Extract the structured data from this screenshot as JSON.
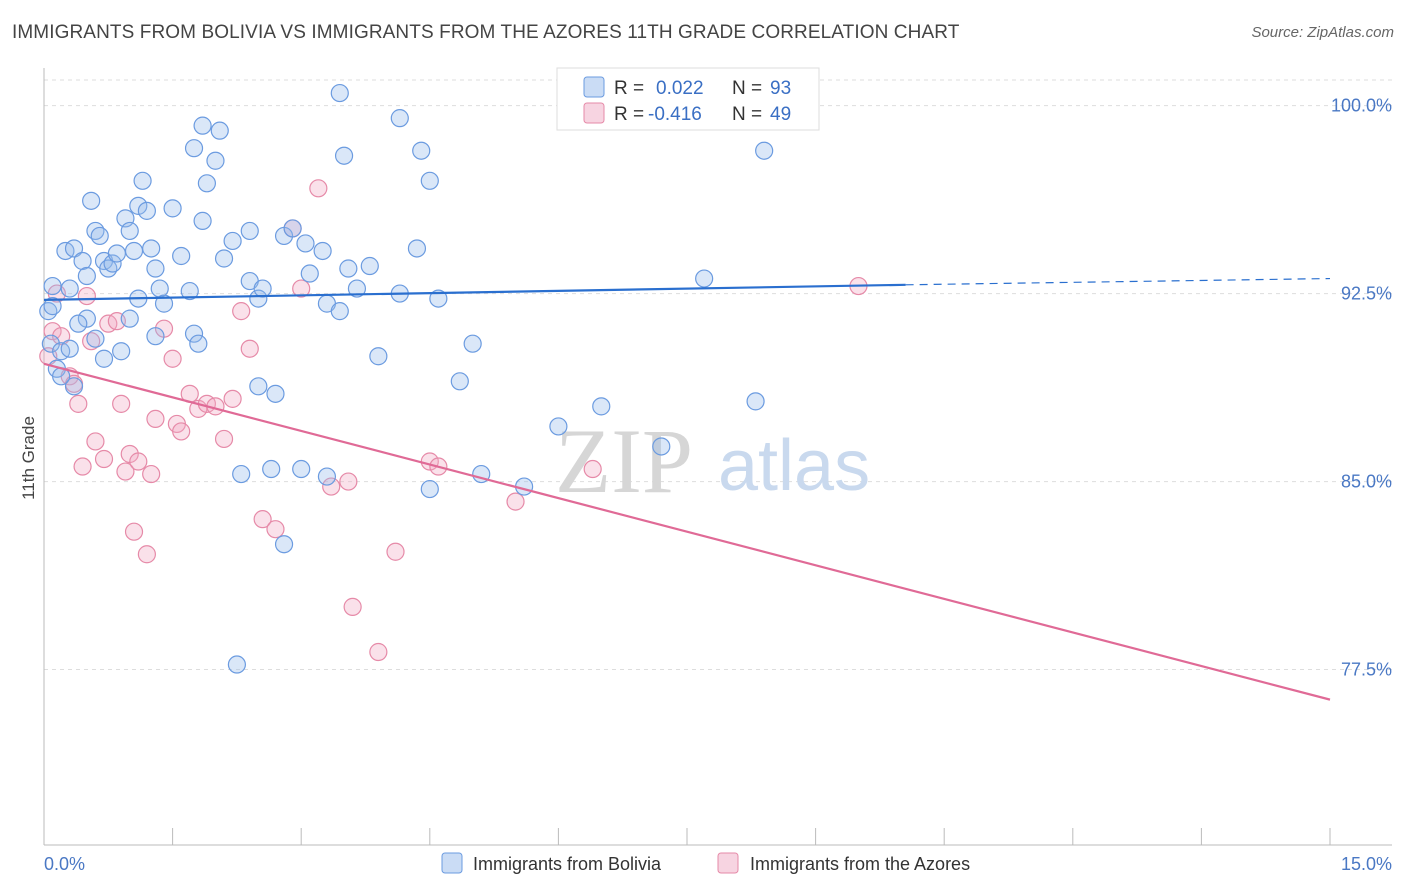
{
  "title": "IMMIGRANTS FROM BOLIVIA VS IMMIGRANTS FROM THE AZORES 11TH GRADE CORRELATION CHART",
  "source": "Source: ZipAtlas.com",
  "watermark": {
    "zip": "ZIP",
    "atlas": "atlas"
  },
  "colors": {
    "bolivia": "#6b9be0",
    "bolivia_fill": "rgba(150,185,235,0.35)",
    "bolivia_line": "#2a6fcf",
    "azores": "#e68aa8",
    "azores_fill": "rgba(240,170,195,0.35)",
    "azores_line": "#e06a96",
    "axis_label": "#4a78c4"
  },
  "legend": {
    "r_label": "R =",
    "n_label": "N =",
    "bolivia": {
      "r": "0.022",
      "n": "93"
    },
    "azores": {
      "r": "-0.416",
      "n": "49"
    }
  },
  "chart_data": {
    "type": "scatter",
    "title": "IMMIGRANTS FROM BOLIVIA VS IMMIGRANTS FROM THE AZORES 11TH GRADE CORRELATION CHART",
    "xlabel": "",
    "ylabel": "11th Grade",
    "xlim": [
      0,
      15
    ],
    "ylim": [
      70.5,
      101.5
    ],
    "x_tick_labels": [
      {
        "value": 0,
        "label": "0.0%"
      },
      {
        "value": 15,
        "label": "15.0%"
      }
    ],
    "y_ticks": [
      {
        "value": 100,
        "label": "100.0%"
      },
      {
        "value": 92.5,
        "label": "92.5%"
      },
      {
        "value": 85,
        "label": "85.0%"
      },
      {
        "value": 77.5,
        "label": "77.5%"
      }
    ],
    "grid": true,
    "legend_position": "top-center",
    "series": [
      {
        "name": "Immigrants from Bolivia",
        "color": "#6b9be0",
        "trend": {
          "x": [
            0,
            10.05
          ],
          "y": [
            92.25,
            92.85
          ],
          "dashed_to": [
            15,
            93.1
          ]
        },
        "points": [
          [
            0.1,
            92.8
          ],
          [
            0.05,
            91.8
          ],
          [
            0.08,
            90.5
          ],
          [
            0.15,
            89.5
          ],
          [
            0.2,
            90.2
          ],
          [
            0.3,
            92.7
          ],
          [
            0.25,
            94.2
          ],
          [
            0.35,
            94.3
          ],
          [
            0.45,
            93.8
          ],
          [
            0.5,
            93.2
          ],
          [
            0.55,
            96.2
          ],
          [
            0.6,
            95.0
          ],
          [
            0.65,
            94.8
          ],
          [
            0.7,
            93.8
          ],
          [
            0.75,
            93.5
          ],
          [
            0.8,
            93.7
          ],
          [
            0.85,
            94.1
          ],
          [
            0.95,
            95.5
          ],
          [
            1.0,
            95.0
          ],
          [
            1.05,
            94.2
          ],
          [
            1.1,
            96.0
          ],
          [
            1.2,
            95.8
          ],
          [
            1.25,
            94.3
          ],
          [
            1.3,
            93.5
          ],
          [
            1.35,
            92.7
          ],
          [
            1.4,
            92.1
          ],
          [
            1.5,
            95.9
          ],
          [
            1.6,
            94.0
          ],
          [
            1.7,
            92.6
          ],
          [
            1.75,
            90.9
          ],
          [
            1.8,
            90.5
          ],
          [
            1.3,
            90.8
          ],
          [
            1.1,
            92.3
          ],
          [
            1.0,
            91.5
          ],
          [
            0.9,
            90.2
          ],
          [
            0.7,
            89.9
          ],
          [
            0.6,
            90.7
          ],
          [
            0.5,
            91.5
          ],
          [
            0.4,
            91.3
          ],
          [
            0.3,
            90.3
          ],
          [
            0.35,
            88.8
          ],
          [
            0.2,
            89.2
          ],
          [
            0.1,
            92.0
          ],
          [
            1.15,
            97.0
          ],
          [
            1.75,
            98.3
          ],
          [
            1.9,
            96.9
          ],
          [
            2.0,
            97.8
          ],
          [
            2.05,
            99.0
          ],
          [
            1.85,
            99.2
          ],
          [
            1.85,
            95.4
          ],
          [
            2.1,
            93.9
          ],
          [
            2.2,
            94.6
          ],
          [
            2.4,
            95.0
          ],
          [
            2.4,
            93.0
          ],
          [
            2.5,
            92.3
          ],
          [
            2.55,
            92.7
          ],
          [
            2.8,
            94.8
          ],
          [
            2.9,
            95.1
          ],
          [
            3.05,
            94.5
          ],
          [
            3.1,
            93.3
          ],
          [
            3.25,
            94.2
          ],
          [
            3.3,
            92.1
          ],
          [
            3.45,
            91.8
          ],
          [
            3.55,
            93.5
          ],
          [
            3.5,
            98.0
          ],
          [
            3.45,
            100.5
          ],
          [
            3.65,
            92.7
          ],
          [
            3.8,
            93.6
          ],
          [
            3.9,
            90.0
          ],
          [
            4.15,
            92.5
          ],
          [
            4.4,
            98.2
          ],
          [
            4.15,
            99.5
          ],
          [
            4.35,
            94.3
          ],
          [
            4.5,
            97.0
          ],
          [
            4.6,
            92.3
          ],
          [
            4.85,
            89.0
          ],
          [
            5.1,
            85.3
          ],
          [
            5.6,
            84.8
          ],
          [
            6.0,
            87.2
          ],
          [
            6.5,
            88.0
          ],
          [
            7.2,
            86.4
          ],
          [
            7.7,
            93.1
          ],
          [
            8.4,
            98.2
          ],
          [
            8.3,
            88.2
          ],
          [
            5.0,
            90.5
          ],
          [
            4.5,
            84.7
          ],
          [
            2.8,
            82.5
          ],
          [
            2.3,
            85.3
          ],
          [
            2.65,
            85.5
          ],
          [
            2.5,
            88.8
          ],
          [
            2.7,
            88.5
          ],
          [
            3.3,
            85.2
          ],
          [
            3.0,
            85.5
          ],
          [
            2.25,
            77.7
          ]
        ]
      },
      {
        "name": "Immigrants from the Azores",
        "color": "#e68aa8",
        "trend": {
          "x": [
            0,
            15
          ],
          "y": [
            89.7,
            76.3
          ]
        },
        "points": [
          [
            0.05,
            90.0
          ],
          [
            0.1,
            91.0
          ],
          [
            0.15,
            92.5
          ],
          [
            0.2,
            90.8
          ],
          [
            0.3,
            89.2
          ],
          [
            0.35,
            88.9
          ],
          [
            0.4,
            88.1
          ],
          [
            0.45,
            85.6
          ],
          [
            0.5,
            92.4
          ],
          [
            0.55,
            90.6
          ],
          [
            0.6,
            86.6
          ],
          [
            0.7,
            85.9
          ],
          [
            0.75,
            91.3
          ],
          [
            0.85,
            91.4
          ],
          [
            0.9,
            88.1
          ],
          [
            0.95,
            85.4
          ],
          [
            1.0,
            86.1
          ],
          [
            1.05,
            83.0
          ],
          [
            1.1,
            85.8
          ],
          [
            1.2,
            82.1
          ],
          [
            1.25,
            85.3
          ],
          [
            1.3,
            87.5
          ],
          [
            1.4,
            91.1
          ],
          [
            1.5,
            89.9
          ],
          [
            1.55,
            87.3
          ],
          [
            1.6,
            87.0
          ],
          [
            1.7,
            88.5
          ],
          [
            1.8,
            87.9
          ],
          [
            1.9,
            88.1
          ],
          [
            2.0,
            88.0
          ],
          [
            2.1,
            86.7
          ],
          [
            2.2,
            88.3
          ],
          [
            2.3,
            91.8
          ],
          [
            2.4,
            90.3
          ],
          [
            2.55,
            83.5
          ],
          [
            2.7,
            83.1
          ],
          [
            2.9,
            95.1
          ],
          [
            3.0,
            92.7
          ],
          [
            3.2,
            96.7
          ],
          [
            3.35,
            84.8
          ],
          [
            3.55,
            85.0
          ],
          [
            3.6,
            80.0
          ],
          [
            3.9,
            78.2
          ],
          [
            4.1,
            82.2
          ],
          [
            4.5,
            85.8
          ],
          [
            4.6,
            85.6
          ],
          [
            5.5,
            84.2
          ],
          [
            6.4,
            85.5
          ],
          [
            9.5,
            92.8
          ]
        ]
      }
    ]
  },
  "bottom_legend": [
    {
      "label": "Immigrants from Bolivia",
      "key": "bolivia"
    },
    {
      "label": "Immigrants from the Azores",
      "key": "azores"
    }
  ]
}
